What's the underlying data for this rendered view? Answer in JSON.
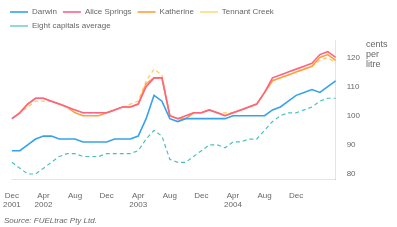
{
  "chart_data": {
    "type": "line",
    "y_label": "cents\nper\nlitre",
    "annotations": [
      "Source: FUELtrac Pty Ltd."
    ],
    "categories": [
      "Dec\n2001",
      null,
      null,
      null,
      "Apr\n2002",
      null,
      null,
      null,
      "Aug",
      null,
      null,
      null,
      "Dec",
      null,
      null,
      null,
      "Apr\n2003",
      null,
      null,
      null,
      "Aug",
      null,
      null,
      null,
      "Dec",
      null,
      null,
      null,
      "Apr\n2004",
      null,
      null,
      null,
      "Aug",
      null,
      null,
      null,
      "Dec",
      null,
      null,
      null,
      null,
      null
    ],
    "series": [
      {
        "name": "Darwin",
        "line_style": "solid",
        "values": [
          88,
          88,
          90,
          92,
          93,
          93,
          92,
          92,
          92,
          91,
          91,
          91,
          91,
          92,
          92,
          92,
          93,
          99,
          107,
          105,
          99,
          98,
          99,
          99,
          99,
          99,
          99,
          99,
          100,
          100,
          100,
          100,
          100,
          102,
          103,
          105,
          107,
          108,
          109,
          108,
          110,
          112
        ]
      },
      {
        "name": "Alice Springs",
        "line_style": "solid",
        "values": [
          99,
          101,
          104,
          106,
          106,
          105,
          104,
          103,
          102,
          101,
          101,
          101,
          101,
          102,
          103,
          103,
          104,
          110,
          113,
          113,
          100,
          99,
          100,
          101,
          101,
          102,
          101,
          100,
          101,
          102,
          103,
          104,
          108,
          113,
          114,
          115,
          116,
          117,
          118,
          121,
          122,
          120
        ]
      },
      {
        "name": "Katherine",
        "line_style": "solid",
        "values": [
          99,
          101,
          104,
          106,
          106,
          105,
          104,
          103,
          101,
          100,
          100,
          100,
          101,
          102,
          103,
          103,
          104,
          111,
          113,
          113,
          100,
          99,
          99,
          101,
          101,
          102,
          101,
          100,
          101,
          102,
          103,
          104,
          108,
          112,
          113,
          114,
          115,
          116,
          117,
          120,
          121,
          119
        ]
      },
      {
        "name": "Tennant Creek",
        "line_style": "dashed",
        "values": [
          99,
          101,
          103,
          105,
          105,
          105,
          104,
          103,
          102,
          101,
          101,
          101,
          101,
          102,
          103,
          104,
          105,
          112,
          116,
          114,
          100,
          99,
          99,
          101,
          101,
          102,
          101,
          101,
          101,
          102,
          103,
          104,
          108,
          112,
          113,
          114,
          115,
          116,
          117,
          119,
          120,
          118
        ]
      },
      {
        "name": "Eight capitals average",
        "line_style": "dashed",
        "values": [
          84,
          82,
          80,
          80,
          82,
          84,
          86,
          87,
          87,
          86,
          86,
          86,
          87,
          87,
          87,
          87,
          88,
          92,
          95,
          93,
          85,
          84,
          84,
          86,
          88,
          90,
          90,
          89,
          91,
          91,
          92,
          92,
          95,
          98,
          100,
          101,
          101,
          102,
          103,
          105,
          106,
          106
        ]
      }
    ],
    "ylim": [
      78,
      126
    ],
    "yticks": [
      80,
      90,
      100,
      110,
      120
    ],
    "grid": false,
    "legend": "upper left"
  }
}
